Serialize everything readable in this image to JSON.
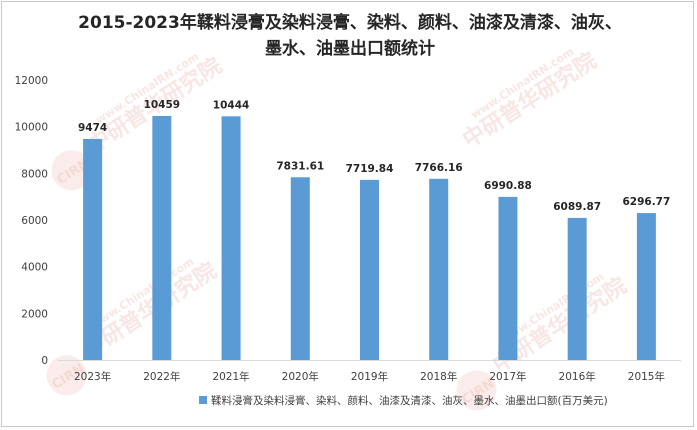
{
  "chart_data": {
    "type": "bar",
    "title": "2015-2023年鞣料浸膏及染料浸膏、染料、颜料、油漆及清漆、油灰、墨水、油墨出口额统计",
    "categories": [
      "2023年",
      "2022年",
      "2021年",
      "2020年",
      "2019年",
      "2018年",
      "2017年",
      "2016年",
      "2015年"
    ],
    "series": [
      {
        "name": "鞣料浸膏及染料浸膏、染料、颜料、油漆及清漆、油灰、墨水、油墨出口额(百万美元)",
        "values": [
          9474,
          10459,
          10444,
          7831.61,
          7719.84,
          7766.16,
          6990.88,
          6089.87,
          6296.77
        ],
        "labels": [
          "9474",
          "10459",
          "10444",
          "7831.61",
          "7719.84",
          "7766.16",
          "6990.88",
          "6089.87",
          "6296.77"
        ]
      }
    ],
    "ylim": [
      0,
      12000
    ],
    "yticks": [
      "0",
      "2000",
      "4000",
      "6000",
      "8000",
      "10000",
      "12000"
    ],
    "grid": false,
    "legend_position": "bottom",
    "bar_color": "#5b9bd5"
  },
  "watermark": {
    "text": "中研普华研究院",
    "url_text": "www.ChinaIRN.com",
    "logo_text": "CIRN"
  }
}
